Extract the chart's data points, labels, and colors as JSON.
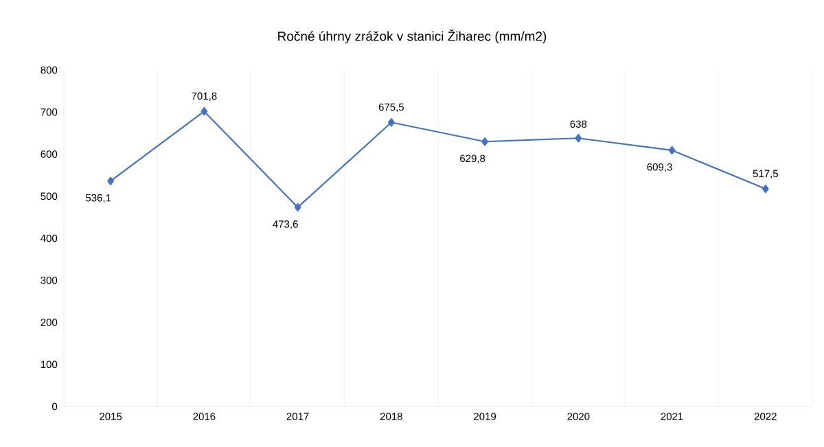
{
  "chart_data": {
    "type": "line",
    "title": "Ročné úhrny zrážok v stanici Žiharec (mm/m2)",
    "categories": [
      "2015",
      "2016",
      "2017",
      "2018",
      "2019",
      "2020",
      "2021",
      "2022"
    ],
    "values": [
      536.1,
      701.8,
      473.6,
      675.5,
      629.8,
      638,
      609.3,
      517.5
    ],
    "value_labels": [
      "536,1",
      "701,8",
      "473,6",
      "675,5",
      "629,8",
      "638",
      "609,3",
      "517,5"
    ],
    "color": "#4472c4",
    "marker": "diamond",
    "line_style": "solid",
    "grid": "x",
    "ylim": [
      0,
      800
    ],
    "yticks": [
      0,
      100,
      200,
      300,
      400,
      500,
      600,
      700,
      800
    ]
  }
}
